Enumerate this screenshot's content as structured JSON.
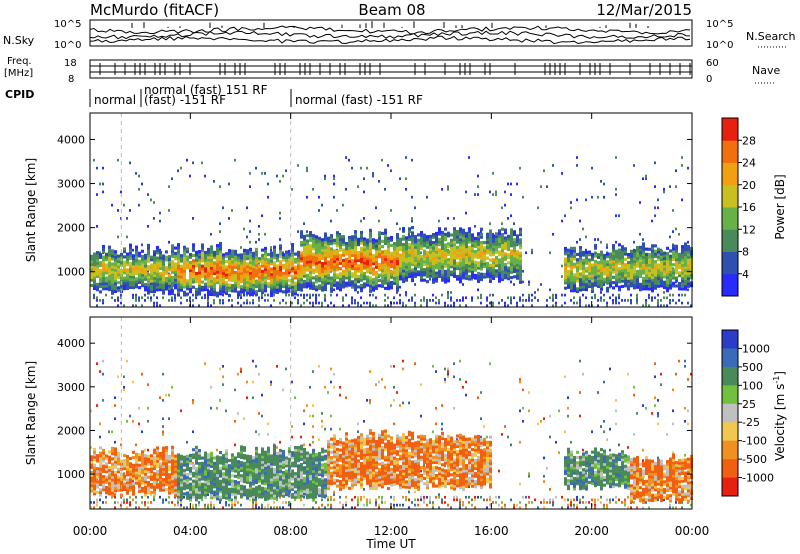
{
  "header": {
    "station": "McMurdo (fitACF)",
    "beam": "Beam 08",
    "date": "12/Mar/2015"
  },
  "panels": {
    "nsky": {
      "label": "N.Sky",
      "tick_top": "10^5",
      "tick_bottom": "10^0"
    },
    "nsearch": {
      "label": "N.Search",
      "tick_top": "10^5",
      "tick_bottom": "10^0"
    },
    "freq": {
      "label_line1": "Freq.",
      "label_line2": "[MHz]",
      "tick_top": "18",
      "tick_bottom": "8"
    },
    "nave": {
      "label": "Nave",
      "tick_top": "60",
      "tick_bottom": "0"
    },
    "cpid": {
      "label": "CPID",
      "segments": [
        {
          "label": "normal",
          "start_hour": 0.0
        },
        {
          "label": "normal (fast) 151 RF",
          "start_hour": 1.25
        },
        {
          "label": "(fast) -151 RF",
          "start_hour": 1.25
        },
        {
          "label": "normal (fast) -151 RF",
          "start_hour": 8.0
        }
      ]
    }
  },
  "chart_data": [
    {
      "type": "heatmap",
      "name": "Power",
      "ylabel": "Slant Range [km]",
      "ylim": [
        200,
        4600
      ],
      "yticks": [
        "1000",
        "2000",
        "3000",
        "4000"
      ],
      "xlim_hours": [
        0,
        24
      ],
      "colorbar": {
        "label": "Power [dB]",
        "ticks": [
          "4",
          "8",
          "12",
          "16",
          "20",
          "24",
          "28"
        ],
        "colors": [
          "#2a2aff",
          "#3050b0",
          "#4a8a5a",
          "#68b048",
          "#c8c020",
          "#f0a010",
          "#f07010",
          "#e82010"
        ]
      },
      "regions": [
        {
          "t0": 0.0,
          "t1": 3.4,
          "r0": 550,
          "r1": 1500,
          "level": 4
        },
        {
          "t0": 3.4,
          "t1": 8.3,
          "r0": 500,
          "r1": 1500,
          "level": 6
        },
        {
          "t0": 8.3,
          "t1": 12.3,
          "r0": 600,
          "r1": 1800,
          "level": 6
        },
        {
          "t0": 12.3,
          "t1": 17.2,
          "r0": 800,
          "r1": 1900,
          "level": 4
        },
        {
          "t0": 18.8,
          "t1": 24.0,
          "r0": 600,
          "r1": 1500,
          "level": 4
        }
      ]
    },
    {
      "type": "heatmap",
      "name": "Velocity",
      "ylabel": "Slant Range [km]",
      "ylim": [
        200,
        4600
      ],
      "yticks": [
        "1000",
        "2000",
        "3000",
        "4000"
      ],
      "xlim_hours": [
        0,
        24
      ],
      "xticks": [
        "00:00",
        "04:00",
        "08:00",
        "12:00",
        "16:00",
        "20:00",
        "00:00"
      ],
      "xlabel": "Time UT",
      "colorbar": {
        "label": "Velocity [m s",
        "label_sup": "-1",
        "label_end": "]",
        "ticks": [
          "1000",
          "500",
          "100",
          "25",
          "-25",
          "-100",
          "-500",
          "-1000"
        ],
        "colors": [
          "#2a3cc8",
          "#3a6ab8",
          "#4a8a5a",
          "#72c040",
          "#c0c0c0",
          "#f0c850",
          "#f09020",
          "#f06010",
          "#e82010"
        ]
      },
      "regions": [
        {
          "t0": 0.0,
          "t1": 3.4,
          "r0": 550,
          "r1": 1500,
          "sign": "away"
        },
        {
          "t0": 3.4,
          "t1": 9.4,
          "r0": 450,
          "r1": 1500,
          "sign": "toward"
        },
        {
          "t0": 9.4,
          "t1": 16.0,
          "r0": 700,
          "r1": 1850,
          "sign": "away"
        },
        {
          "t0": 18.8,
          "t1": 21.5,
          "r0": 700,
          "r1": 1500,
          "sign": "toward"
        },
        {
          "t0": 21.5,
          "t1": 24.0,
          "r0": 400,
          "r1": 1300,
          "sign": "away"
        }
      ]
    }
  ]
}
